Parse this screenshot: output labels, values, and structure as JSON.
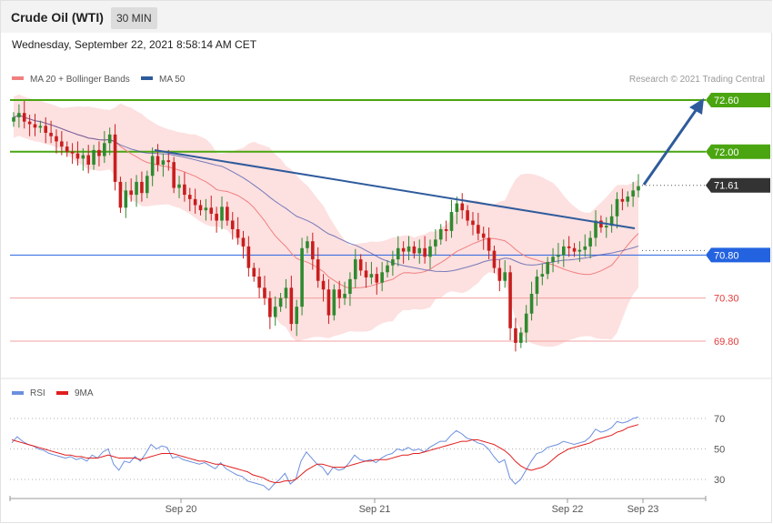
{
  "header": {
    "instrument": "Crude Oil (WTI)",
    "timeframe": "30 MIN"
  },
  "timestamp": "Wednesday, September 22, 2021 8:58:14 AM CET",
  "credit": "Research © 2021 Trading Central",
  "colors": {
    "green_level": "#4aa511",
    "current_price": "#333333",
    "pivot": "#2463e0",
    "support": "#e23b3b",
    "trend": "#2f5b9c",
    "bollinger_fill": "#fde0e0",
    "ma20": "#f08080",
    "ma50": "#3c4fa8",
    "candle_up": "#2f8a2f",
    "candle_down": "#c81e1e",
    "rsi": "#6c8fde",
    "rsi_ma": "#e01e1e"
  },
  "chart_data": [
    {
      "type": "candlestick",
      "legend": [
        "MA 20 + Bollinger Bands",
        "MA 50"
      ],
      "ylim": [
        69.5,
        72.7
      ],
      "x_tick_labels": [
        "Sep 20",
        "Sep 21",
        "Sep 22",
        "Sep 23"
      ],
      "levels": [
        {
          "label": "72.60",
          "value": 72.6,
          "kind": "target"
        },
        {
          "label": "72.00",
          "value": 72.0,
          "kind": "target"
        },
        {
          "label": "71.61",
          "value": 71.61,
          "kind": "current"
        },
        {
          "label": "70.80",
          "value": 70.8,
          "kind": "pivot"
        },
        {
          "label": "70.30",
          "value": 70.3,
          "kind": "support"
        },
        {
          "label": "69.80",
          "value": 69.8,
          "kind": "support"
        }
      ],
      "closes": [
        72.4,
        72.45,
        72.35,
        72.32,
        72.28,
        72.3,
        72.22,
        72.18,
        72.12,
        72.06,
        72.0,
        71.98,
        71.92,
        71.96,
        71.85,
        72.02,
        71.95,
        72.1,
        72.2,
        71.65,
        71.35,
        71.55,
        71.5,
        71.65,
        71.52,
        71.72,
        71.95,
        71.85,
        71.9,
        71.88,
        71.58,
        71.62,
        71.5,
        71.45,
        71.38,
        71.32,
        71.35,
        71.28,
        71.2,
        71.36,
        71.2,
        71.1,
        71.0,
        70.9,
        70.65,
        70.55,
        70.42,
        70.3,
        70.08,
        70.2,
        70.3,
        70.42,
        70.0,
        70.2,
        70.88,
        70.96,
        70.75,
        70.5,
        70.4,
        70.1,
        70.4,
        70.3,
        70.35,
        70.52,
        70.75,
        70.62,
        70.54,
        70.58,
        70.48,
        70.6,
        70.68,
        70.75,
        70.88,
        70.84,
        70.9,
        70.82,
        70.88,
        70.78,
        70.9,
        70.98,
        71.1,
        71.08,
        71.3,
        71.4,
        71.32,
        71.2,
        71.15,
        71.05,
        71.0,
        70.85,
        70.65,
        70.5,
        70.6,
        69.95,
        69.78,
        69.9,
        70.12,
        70.35,
        70.55,
        70.58,
        70.72,
        70.78,
        70.8,
        70.9,
        70.88,
        70.84,
        70.86,
        70.9,
        71.0,
        71.2,
        71.12,
        71.14,
        71.25,
        71.45,
        71.42,
        71.48,
        71.55,
        71.6
      ],
      "x_points": 118
    },
    {
      "type": "line",
      "legend": [
        "RSI",
        "9MA"
      ],
      "ylim": [
        20,
        80
      ],
      "y_tick_labels": [
        "70",
        "50",
        "30"
      ],
      "series": [
        {
          "name": "RSI",
          "values": [
            54,
            58,
            55,
            53,
            52,
            50,
            49,
            47,
            46,
            45,
            44,
            45,
            43,
            44,
            42,
            46,
            44,
            48,
            50,
            40,
            36,
            42,
            41,
            45,
            42,
            47,
            53,
            50,
            52,
            51,
            44,
            45,
            43,
            42,
            41,
            40,
            41,
            39,
            37,
            41,
            37,
            35,
            33,
            32,
            29,
            28,
            27,
            26,
            23,
            27,
            30,
            34,
            27,
            30,
            42,
            48,
            44,
            40,
            38,
            33,
            38,
            36,
            37,
            41,
            46,
            43,
            42,
            43,
            41,
            44,
            46,
            47,
            50,
            49,
            51,
            49,
            50,
            48,
            51,
            53,
            55,
            55,
            59,
            62,
            60,
            57,
            56,
            54,
            53,
            50,
            45,
            41,
            43,
            31,
            27,
            30,
            36,
            42,
            47,
            48,
            51,
            52,
            53,
            55,
            54,
            53,
            54,
            55,
            58,
            63,
            61,
            62,
            64,
            68,
            67,
            68,
            70,
            71
          ]
        },
        {
          "name": "9MA",
          "values": [
            56,
            55,
            54,
            53,
            52,
            51,
            50,
            49,
            48,
            47,
            46,
            46,
            45,
            45,
            44,
            44,
            44,
            45,
            46,
            45,
            44,
            44,
            44,
            44,
            43,
            44,
            45,
            46,
            47,
            47,
            47,
            46,
            45,
            44,
            43,
            42,
            42,
            41,
            40,
            40,
            39,
            38,
            37,
            36,
            35,
            33,
            32,
            31,
            29,
            28,
            28,
            29,
            29,
            30,
            33,
            36,
            38,
            40,
            40,
            39,
            38,
            38,
            38,
            39,
            40,
            41,
            42,
            42,
            43,
            43,
            43,
            44,
            45,
            46,
            46,
            47,
            47,
            48,
            49,
            50,
            51,
            52,
            53,
            54,
            55,
            55,
            56,
            56,
            55,
            54,
            53,
            51,
            49,
            46,
            42,
            39,
            37,
            36,
            37,
            38,
            40,
            43,
            46,
            48,
            50,
            51,
            52,
            53,
            54,
            56,
            57,
            58,
            59,
            61,
            62,
            64,
            65,
            66
          ]
        }
      ]
    }
  ]
}
